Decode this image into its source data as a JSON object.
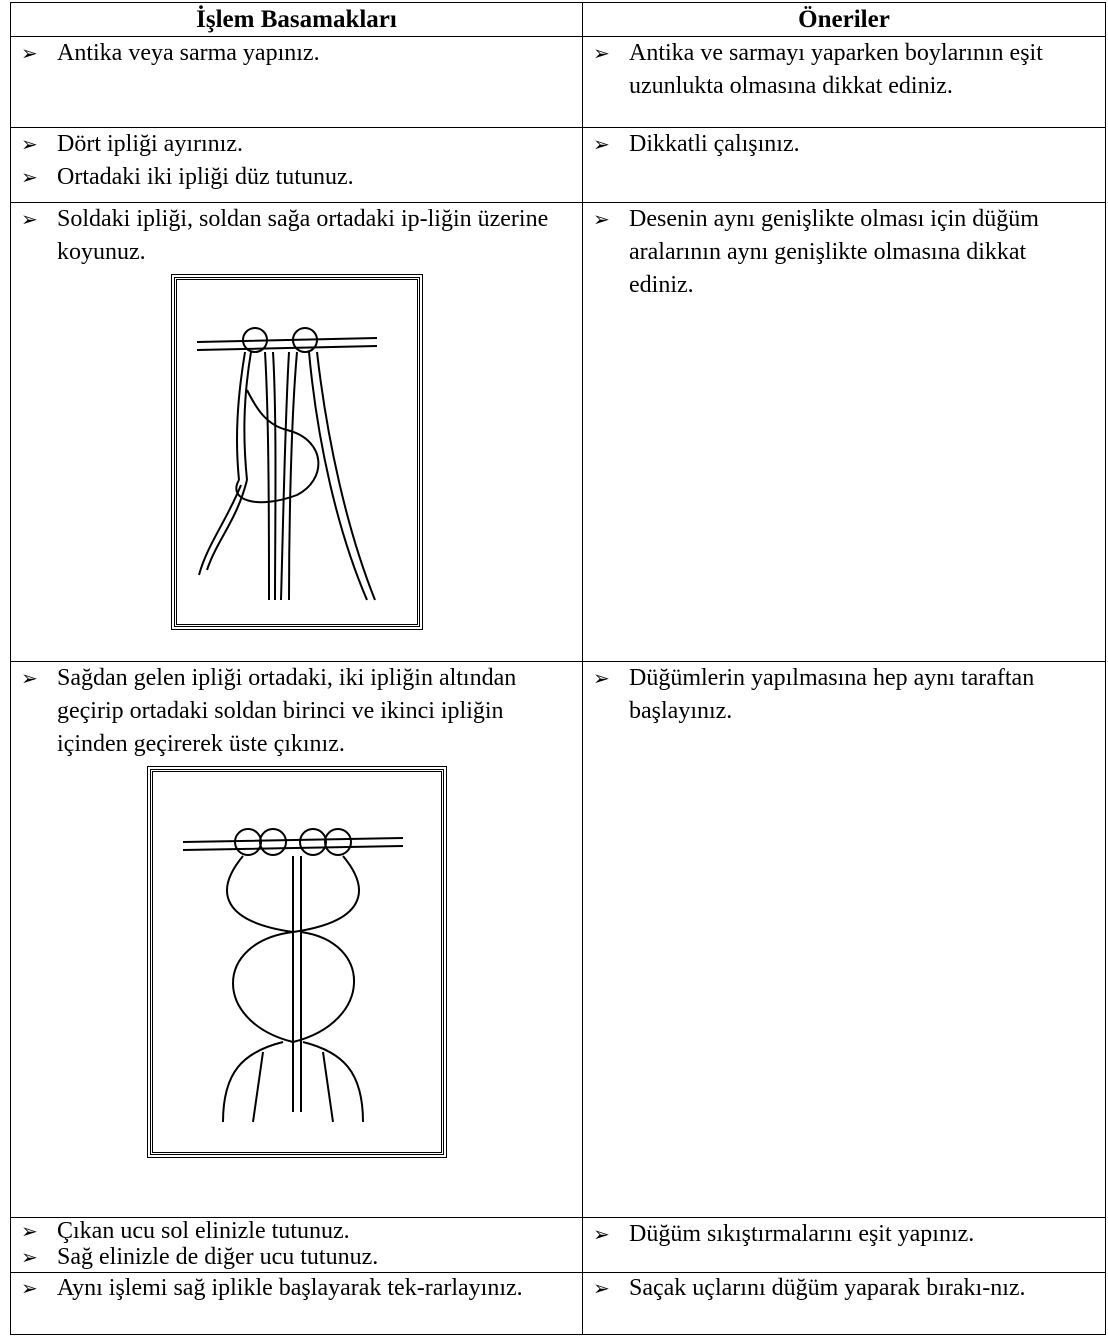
{
  "table": {
    "header": [
      "İşlem Basamakları",
      "Öneriler"
    ],
    "rows": [
      {
        "steps": [
          "Antika veya sarma yapınız."
        ],
        "tips": [
          "Antika ve sarmayı yaparken boylarının eşit uzunlukta olmasına dikkat ediniz."
        ]
      },
      {
        "steps": [
          "Dört ipliği ayırınız.",
          "Ortadaki iki ipliği düz tutunuz."
        ],
        "tips": [
          "Dikkatli çalışınız."
        ]
      },
      {
        "steps": [
          "Soldaki ipliği, soldan sağa ortadaki ip-liğin üzerine koyunuz."
        ],
        "tips": [
          "Desenin aynı genişlikte olması için düğüm aralarının aynı genişlikte olmasına dikkat ediniz."
        ]
      },
      {
        "steps": [
          "Sağdan gelen ipliği ortadaki, iki ipliğin altından geçirip ortadaki soldan birinci ve ikinci ipliğin içinden geçirerek üste çıkınız."
        ],
        "tips": [
          "Düğümlerin yapılmasına hep aynı taraftan başlayınız."
        ]
      },
      {
        "steps": [
          "Çıkan ucu sol elinizle tutunuz.",
          "Sağ elinizle de diğer ucu tutunuz."
        ],
        "tips": [
          "Düğüm sıkıştırmalarını eşit yapınız."
        ]
      },
      {
        "steps": [
          "Aynı işlemi sağ iplikle başlayarak tek-rarlayınız."
        ],
        "tips": [
          "Saçak uçlarını düğüm yaparak bırakı-nız."
        ]
      }
    ]
  }
}
